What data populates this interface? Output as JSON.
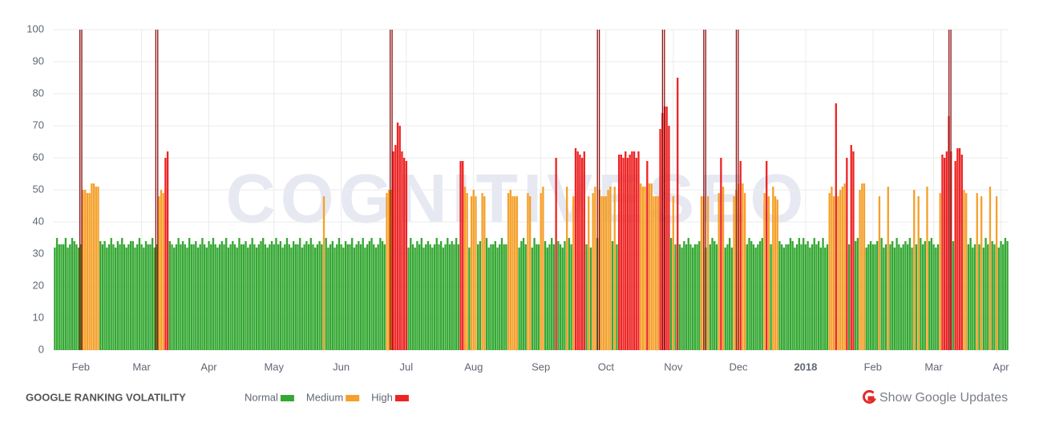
{
  "chart_data": {
    "type": "bar",
    "title": "GOOGLE RANKING VOLATILITY",
    "watermark": "COGNITIVESEO",
    "toggle_label": "Show Google Updates",
    "xlim": [
      -0.5,
      439.5
    ],
    "xticks": [
      {
        "value": 12,
        "label": "Feb"
      },
      {
        "value": 40,
        "label": "Mar"
      },
      {
        "value": 71,
        "label": "Apr"
      },
      {
        "value": 101,
        "label": "May"
      },
      {
        "value": 132,
        "label": "Jun"
      },
      {
        "value": 162,
        "label": "Jul"
      },
      {
        "value": 193,
        "label": "Aug"
      },
      {
        "value": 224,
        "label": "Sep"
      },
      {
        "value": 254,
        "label": "Oct"
      },
      {
        "value": 285,
        "label": "Nov"
      },
      {
        "value": 315,
        "label": "Dec"
      },
      {
        "value": 346,
        "label": "2018"
      },
      {
        "value": 377,
        "label": "Feb"
      },
      {
        "value": 405,
        "label": "Mar"
      },
      {
        "value": 436,
        "label": "Apr"
      }
    ],
    "ylim": [
      0,
      100
    ],
    "yticks": [
      0,
      10,
      20,
      30,
      40,
      50,
      60,
      70,
      80,
      90,
      100
    ],
    "grid": true,
    "series": [
      {
        "name": "Normal",
        "color": "#35a833",
        "x": [
          0,
          1,
          2,
          3,
          4,
          5,
          6,
          7,
          8,
          9,
          10,
          11,
          12,
          21,
          22,
          23,
          24,
          25,
          26,
          27,
          28,
          29,
          30,
          31,
          32,
          33,
          34,
          35,
          36,
          37,
          38,
          39,
          40,
          41,
          42,
          43,
          44,
          45,
          46,
          47,
          53,
          54,
          55,
          56,
          57,
          58,
          59,
          60,
          61,
          62,
          63,
          64,
          65,
          66,
          67,
          68,
          69,
          70,
          71,
          72,
          73,
          74,
          75,
          76,
          77,
          78,
          79,
          80,
          81,
          82,
          83,
          84,
          85,
          86,
          87,
          88,
          89,
          90,
          91,
          92,
          93,
          94,
          95,
          96,
          97,
          98,
          99,
          100,
          101,
          102,
          103,
          104,
          105,
          106,
          107,
          108,
          109,
          110,
          111,
          112,
          113,
          114,
          115,
          116,
          117,
          118,
          119,
          120,
          121,
          122,
          123,
          125,
          126,
          127,
          128,
          129,
          130,
          131,
          132,
          133,
          134,
          135,
          136,
          137,
          138,
          139,
          140,
          141,
          142,
          143,
          144,
          145,
          146,
          147,
          148,
          149,
          150,
          151,
          152,
          163,
          164,
          165,
          166,
          167,
          168,
          169,
          170,
          171,
          172,
          173,
          174,
          175,
          176,
          177,
          178,
          179,
          180,
          181,
          182,
          183,
          184,
          185,
          186,
          191,
          195,
          196,
          199,
          200,
          201,
          202,
          203,
          204,
          205,
          206,
          207,
          208,
          214,
          215,
          216,
          217,
          220,
          221,
          222,
          223,
          226,
          227,
          228,
          229,
          230,
          232,
          233,
          234,
          235,
          237,
          238,
          245,
          247,
          250,
          257,
          259,
          284,
          286,
          288,
          289,
          290,
          291,
          292,
          293,
          294,
          295,
          296,
          297,
          300,
          302,
          303,
          304,
          305,
          309,
          310,
          311,
          312,
          319,
          320,
          321,
          322,
          323,
          324,
          325,
          326,
          330,
          334,
          335,
          336,
          337,
          338,
          339,
          340,
          341,
          342,
          343,
          344,
          345,
          346,
          347,
          348,
          349,
          350,
          351,
          352,
          353,
          354,
          355,
          356,
          366,
          369,
          370,
          374,
          375,
          376,
          377,
          378,
          379,
          381,
          382,
          383,
          385,
          386,
          387,
          388,
          389,
          390,
          391,
          392,
          393,
          394,
          395,
          397,
          399,
          400,
          401,
          403,
          404,
          405,
          406,
          407,
          414,
          421,
          422,
          423,
          424,
          426,
          428,
          429,
          430,
          432,
          433,
          435,
          436,
          437,
          438,
          439
        ],
        "values": [
          32,
          35,
          33,
          33,
          33,
          35,
          32,
          33,
          35,
          34,
          33,
          32,
          33,
          34,
          33,
          34,
          32,
          33,
          35,
          33,
          32,
          34,
          33,
          35,
          33,
          32,
          33,
          34,
          34,
          32,
          33,
          35,
          33,
          32,
          34,
          33,
          33,
          35,
          32,
          33,
          34,
          33,
          32,
          33,
          35,
          33,
          34,
          33,
          32,
          35,
          33,
          33,
          34,
          32,
          33,
          35,
          33,
          32,
          34,
          33,
          35,
          33,
          32,
          33,
          34,
          33,
          35,
          32,
          33,
          34,
          33,
          32,
          35,
          33,
          33,
          34,
          32,
          33,
          35,
          33,
          32,
          33,
          34,
          35,
          33,
          32,
          33,
          34,
          33,
          35,
          33,
          34,
          32,
          33,
          35,
          33,
          32,
          34,
          33,
          33,
          35,
          32,
          33,
          34,
          33,
          35,
          33,
          32,
          33,
          34,
          33,
          35,
          32,
          33,
          34,
          32,
          33,
          35,
          33,
          32,
          34,
          33,
          33,
          35,
          32,
          33,
          34,
          33,
          35,
          32,
          33,
          34,
          35,
          33,
          32,
          33,
          35,
          34,
          33,
          32,
          35,
          33,
          32,
          34,
          33,
          35,
          32,
          33,
          34,
          33,
          32,
          33,
          35,
          33,
          34,
          32,
          33,
          35,
          33,
          34,
          33,
          35,
          33,
          32,
          33,
          34,
          35,
          32,
          33,
          33,
          34,
          32,
          33,
          35,
          33,
          33,
          32,
          34,
          35,
          33,
          32,
          35,
          33,
          33,
          34,
          32,
          33,
          35,
          33,
          34,
          33,
          32,
          34,
          35,
          33,
          33,
          32,
          35,
          34,
          33,
          35,
          33,
          33,
          32,
          34,
          33,
          35,
          33,
          32,
          33,
          33,
          34,
          32,
          33,
          35,
          34,
          33,
          32,
          33,
          35,
          32,
          33,
          35,
          34,
          33,
          32,
          33,
          34,
          35,
          33,
          34,
          33,
          32,
          33,
          33,
          35,
          34,
          32,
          33,
          35,
          33,
          35,
          33,
          34,
          32,
          33,
          35,
          33,
          34,
          32,
          35,
          32,
          33,
          33,
          34,
          35,
          32,
          33,
          34,
          33,
          33,
          34,
          35,
          32,
          33,
          33,
          34,
          32,
          35,
          33,
          32,
          33,
          34,
          33,
          35,
          32,
          33,
          35,
          33,
          34,
          34,
          35,
          33,
          32,
          33,
          34,
          33,
          35,
          32,
          33,
          33,
          32,
          35,
          33,
          34,
          33,
          32,
          34,
          33,
          35,
          34
        ]
      },
      {
        "name": "Medium",
        "color": "#f5a02a",
        "x": [
          13,
          14,
          15,
          16,
          17,
          18,
          19,
          20,
          48,
          49,
          50,
          124,
          153,
          154,
          155,
          189,
          190,
          192,
          193,
          194,
          197,
          198,
          209,
          210,
          211,
          212,
          213,
          218,
          219,
          224,
          225,
          236,
          239,
          246,
          248,
          249,
          251,
          252,
          253,
          254,
          255,
          256,
          258,
          270,
          271,
          272,
          274,
          275,
          276,
          277,
          278,
          285,
          298,
          299,
          301,
          306,
          308,
          313,
          314,
          315,
          317,
          318,
          327,
          329,
          331,
          332,
          333,
          357,
          358,
          359,
          361,
          362,
          363,
          364,
          371,
          372,
          373,
          380,
          384,
          396,
          398,
          402,
          408,
          419,
          420,
          425,
          427,
          431,
          434
        ],
        "values": [
          50,
          50,
          49,
          49,
          52,
          52,
          51,
          51,
          48,
          50,
          49,
          48,
          49,
          50,
          50,
          51,
          49,
          48,
          50,
          48,
          49,
          48,
          49,
          50,
          48,
          48,
          48,
          49,
          48,
          49,
          51,
          51,
          48,
          48,
          49,
          51,
          50,
          48,
          48,
          48,
          50,
          51,
          51,
          52,
          51,
          51,
          52,
          52,
          48,
          48,
          48,
          48,
          48,
          48,
          48,
          49,
          51,
          48,
          50,
          52,
          52,
          49,
          49,
          48,
          51,
          48,
          47,
          49,
          51,
          48,
          48,
          50,
          51,
          52,
          50,
          52,
          52,
          48,
          51,
          50,
          48,
          51,
          49,
          50,
          49,
          49,
          48,
          51,
          48
        ]
      },
      {
        "name": "High",
        "color": "#ee2424",
        "x": [
          51,
          52,
          156,
          157,
          158,
          159,
          160,
          161,
          162,
          187,
          188,
          231,
          240,
          241,
          242,
          243,
          244,
          260,
          261,
          262,
          263,
          264,
          265,
          266,
          267,
          268,
          269,
          273,
          279,
          280,
          281,
          282,
          283,
          287,
          307,
          316,
          328,
          360,
          365,
          367,
          368,
          409,
          410,
          411,
          412,
          413,
          415,
          416,
          417,
          418
        ],
        "values": [
          60,
          62,
          62,
          64,
          71,
          70,
          62,
          60,
          59,
          59,
          59,
          60,
          63,
          62,
          61,
          60,
          62,
          61,
          61,
          60,
          62,
          60,
          61,
          62,
          62,
          60,
          62,
          59,
          69,
          74,
          76,
          76,
          70,
          85,
          60,
          59,
          59,
          77,
          60,
          64,
          62,
          61,
          60,
          62,
          73,
          62,
          59,
          63,
          63,
          61
        ]
      }
    ],
    "google_updates": {
      "color": "#8e0f0f",
      "x": [
        12,
        47,
        155,
        250.5,
        280.5,
        299.5,
        314.5,
        412.5
      ]
    }
  }
}
